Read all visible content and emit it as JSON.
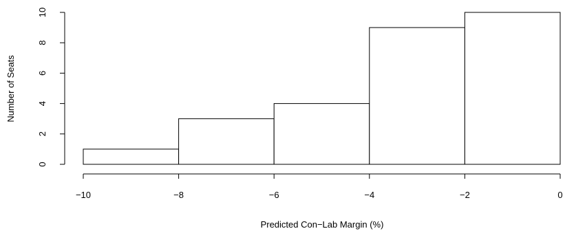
{
  "chart_data": {
    "type": "bar",
    "title": "",
    "xlabel": "Predicted Con−Lab Margin (%)",
    "ylabel": "Number of Seats",
    "bins": [
      {
        "from": -10,
        "to": -8,
        "value": 1
      },
      {
        "from": -8,
        "to": -6,
        "value": 3
      },
      {
        "from": -6,
        "to": -4,
        "value": 4
      },
      {
        "from": -4,
        "to": -2,
        "value": 9
      },
      {
        "from": -2,
        "to": 0,
        "value": 10
      }
    ],
    "xlim": [
      -10,
      0
    ],
    "ylim": [
      0,
      10
    ],
    "x_ticks": [
      -10,
      -8,
      -6,
      -4,
      -2,
      0
    ],
    "x_tick_labels": [
      "−10",
      "−8",
      "−6",
      "−4",
      "−2",
      "0"
    ],
    "y_ticks": [
      0,
      2,
      4,
      6,
      8,
      10
    ],
    "y_tick_labels": [
      "0",
      "2",
      "4",
      "6",
      "8",
      "10"
    ],
    "grid": false,
    "legend": "none",
    "bar_fill": "#ffffff",
    "bar_stroke": "#000000"
  }
}
